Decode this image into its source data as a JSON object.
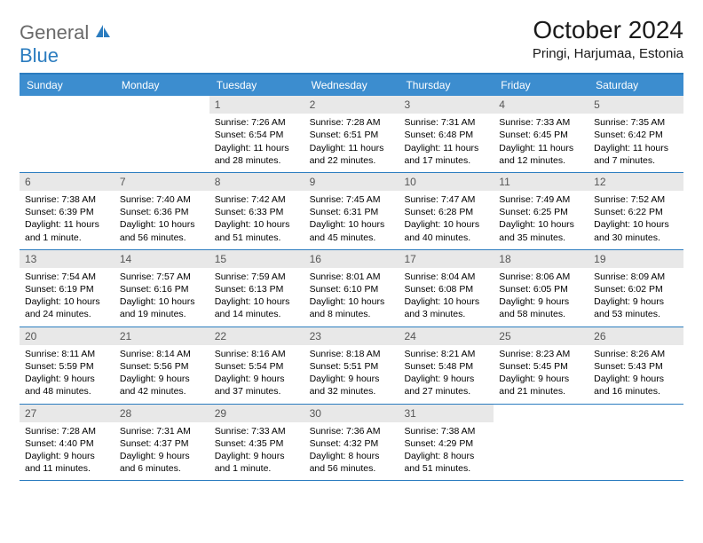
{
  "logo": {
    "text1": "General",
    "text2": "Blue"
  },
  "title": "October 2024",
  "location": "Pringi, Harjumaa, Estonia",
  "days": [
    "Sunday",
    "Monday",
    "Tuesday",
    "Wednesday",
    "Thursday",
    "Friday",
    "Saturday"
  ],
  "colors": {
    "header_bg": "#3c8dcf",
    "border": "#2b7cbf",
    "daynum_bg": "#e8e8e8"
  },
  "weeks": [
    [
      {
        "n": "",
        "sr": "",
        "ss": "",
        "dl": ""
      },
      {
        "n": "",
        "sr": "",
        "ss": "",
        "dl": ""
      },
      {
        "n": "1",
        "sr": "Sunrise: 7:26 AM",
        "ss": "Sunset: 6:54 PM",
        "dl": "Daylight: 11 hours and 28 minutes."
      },
      {
        "n": "2",
        "sr": "Sunrise: 7:28 AM",
        "ss": "Sunset: 6:51 PM",
        "dl": "Daylight: 11 hours and 22 minutes."
      },
      {
        "n": "3",
        "sr": "Sunrise: 7:31 AM",
        "ss": "Sunset: 6:48 PM",
        "dl": "Daylight: 11 hours and 17 minutes."
      },
      {
        "n": "4",
        "sr": "Sunrise: 7:33 AM",
        "ss": "Sunset: 6:45 PM",
        "dl": "Daylight: 11 hours and 12 minutes."
      },
      {
        "n": "5",
        "sr": "Sunrise: 7:35 AM",
        "ss": "Sunset: 6:42 PM",
        "dl": "Daylight: 11 hours and 7 minutes."
      }
    ],
    [
      {
        "n": "6",
        "sr": "Sunrise: 7:38 AM",
        "ss": "Sunset: 6:39 PM",
        "dl": "Daylight: 11 hours and 1 minute."
      },
      {
        "n": "7",
        "sr": "Sunrise: 7:40 AM",
        "ss": "Sunset: 6:36 PM",
        "dl": "Daylight: 10 hours and 56 minutes."
      },
      {
        "n": "8",
        "sr": "Sunrise: 7:42 AM",
        "ss": "Sunset: 6:33 PM",
        "dl": "Daylight: 10 hours and 51 minutes."
      },
      {
        "n": "9",
        "sr": "Sunrise: 7:45 AM",
        "ss": "Sunset: 6:31 PM",
        "dl": "Daylight: 10 hours and 45 minutes."
      },
      {
        "n": "10",
        "sr": "Sunrise: 7:47 AM",
        "ss": "Sunset: 6:28 PM",
        "dl": "Daylight: 10 hours and 40 minutes."
      },
      {
        "n": "11",
        "sr": "Sunrise: 7:49 AM",
        "ss": "Sunset: 6:25 PM",
        "dl": "Daylight: 10 hours and 35 minutes."
      },
      {
        "n": "12",
        "sr": "Sunrise: 7:52 AM",
        "ss": "Sunset: 6:22 PM",
        "dl": "Daylight: 10 hours and 30 minutes."
      }
    ],
    [
      {
        "n": "13",
        "sr": "Sunrise: 7:54 AM",
        "ss": "Sunset: 6:19 PM",
        "dl": "Daylight: 10 hours and 24 minutes."
      },
      {
        "n": "14",
        "sr": "Sunrise: 7:57 AM",
        "ss": "Sunset: 6:16 PM",
        "dl": "Daylight: 10 hours and 19 minutes."
      },
      {
        "n": "15",
        "sr": "Sunrise: 7:59 AM",
        "ss": "Sunset: 6:13 PM",
        "dl": "Daylight: 10 hours and 14 minutes."
      },
      {
        "n": "16",
        "sr": "Sunrise: 8:01 AM",
        "ss": "Sunset: 6:10 PM",
        "dl": "Daylight: 10 hours and 8 minutes."
      },
      {
        "n": "17",
        "sr": "Sunrise: 8:04 AM",
        "ss": "Sunset: 6:08 PM",
        "dl": "Daylight: 10 hours and 3 minutes."
      },
      {
        "n": "18",
        "sr": "Sunrise: 8:06 AM",
        "ss": "Sunset: 6:05 PM",
        "dl": "Daylight: 9 hours and 58 minutes."
      },
      {
        "n": "19",
        "sr": "Sunrise: 8:09 AM",
        "ss": "Sunset: 6:02 PM",
        "dl": "Daylight: 9 hours and 53 minutes."
      }
    ],
    [
      {
        "n": "20",
        "sr": "Sunrise: 8:11 AM",
        "ss": "Sunset: 5:59 PM",
        "dl": "Daylight: 9 hours and 48 minutes."
      },
      {
        "n": "21",
        "sr": "Sunrise: 8:14 AM",
        "ss": "Sunset: 5:56 PM",
        "dl": "Daylight: 9 hours and 42 minutes."
      },
      {
        "n": "22",
        "sr": "Sunrise: 8:16 AM",
        "ss": "Sunset: 5:54 PM",
        "dl": "Daylight: 9 hours and 37 minutes."
      },
      {
        "n": "23",
        "sr": "Sunrise: 8:18 AM",
        "ss": "Sunset: 5:51 PM",
        "dl": "Daylight: 9 hours and 32 minutes."
      },
      {
        "n": "24",
        "sr": "Sunrise: 8:21 AM",
        "ss": "Sunset: 5:48 PM",
        "dl": "Daylight: 9 hours and 27 minutes."
      },
      {
        "n": "25",
        "sr": "Sunrise: 8:23 AM",
        "ss": "Sunset: 5:45 PM",
        "dl": "Daylight: 9 hours and 21 minutes."
      },
      {
        "n": "26",
        "sr": "Sunrise: 8:26 AM",
        "ss": "Sunset: 5:43 PM",
        "dl": "Daylight: 9 hours and 16 minutes."
      }
    ],
    [
      {
        "n": "27",
        "sr": "Sunrise: 7:28 AM",
        "ss": "Sunset: 4:40 PM",
        "dl": "Daylight: 9 hours and 11 minutes."
      },
      {
        "n": "28",
        "sr": "Sunrise: 7:31 AM",
        "ss": "Sunset: 4:37 PM",
        "dl": "Daylight: 9 hours and 6 minutes."
      },
      {
        "n": "29",
        "sr": "Sunrise: 7:33 AM",
        "ss": "Sunset: 4:35 PM",
        "dl": "Daylight: 9 hours and 1 minute."
      },
      {
        "n": "30",
        "sr": "Sunrise: 7:36 AM",
        "ss": "Sunset: 4:32 PM",
        "dl": "Daylight: 8 hours and 56 minutes."
      },
      {
        "n": "31",
        "sr": "Sunrise: 7:38 AM",
        "ss": "Sunset: 4:29 PM",
        "dl": "Daylight: 8 hours and 51 minutes."
      },
      {
        "n": "",
        "sr": "",
        "ss": "",
        "dl": ""
      },
      {
        "n": "",
        "sr": "",
        "ss": "",
        "dl": ""
      }
    ]
  ]
}
